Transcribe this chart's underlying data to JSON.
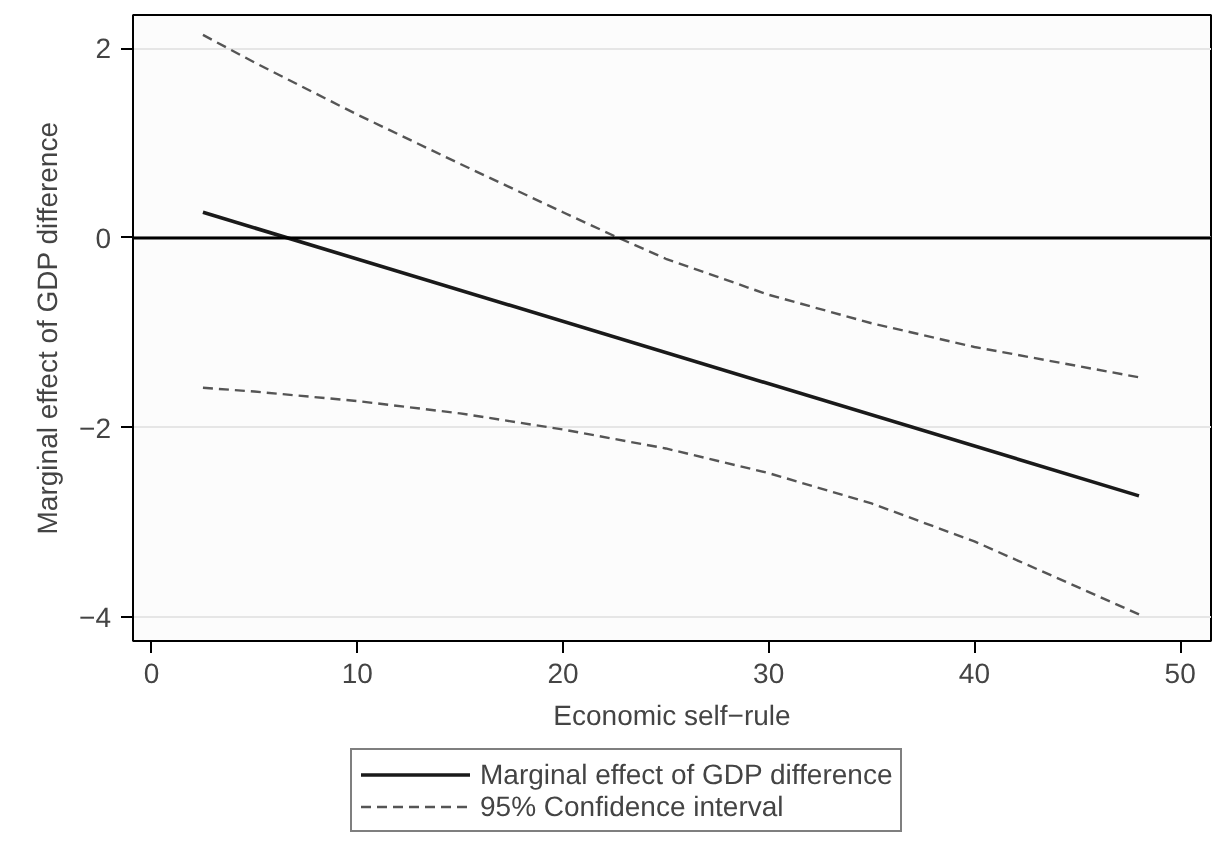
{
  "chart_data": {
    "type": "line",
    "xlabel": "Economic self−rule",
    "ylabel": "Marginal effect of GDP difference",
    "xlim": [
      -0.9,
      51.5
    ],
    "ylim": [
      -4.25,
      2.35
    ],
    "xticks": [
      0,
      10,
      20,
      30,
      40,
      50
    ],
    "yticks": [
      2,
      0,
      {
        "value": -2,
        "label": "−2"
      },
      {
        "value": -4,
        "label": "−4"
      }
    ],
    "grid": "y",
    "legend": "bottom",
    "ref_lines": [
      {
        "axis": "y",
        "value": 0,
        "color": "#000000",
        "line_style": "solid"
      }
    ],
    "series": [
      {
        "name": "Marginal effect of GDP difference",
        "color": "#1a1a1a",
        "line_style": "solid",
        "x": [
          2.5,
          48
        ],
        "values": [
          0.27,
          -2.72
        ]
      },
      {
        "name": "95% Confidence interval",
        "color": "#555555",
        "line_style": "dashed",
        "x": [
          2.5,
          5,
          10,
          15,
          20,
          22.7,
          25,
          30,
          35,
          40,
          45,
          48
        ],
        "values": [
          2.14,
          1.85,
          1.3,
          0.78,
          0.27,
          0,
          -0.22,
          -0.6,
          -0.9,
          -1.15,
          -1.35,
          -1.47
        ]
      },
      {
        "color": "#555555",
        "line_style": "dashed",
        "x": [
          2.5,
          5,
          10,
          15,
          20,
          25,
          30,
          35,
          40,
          45,
          48
        ],
        "values": [
          -1.58,
          -1.62,
          -1.72,
          -1.85,
          -2.02,
          -2.22,
          -2.48,
          -2.8,
          -3.2,
          -3.68,
          -3.97
        ]
      }
    ]
  }
}
